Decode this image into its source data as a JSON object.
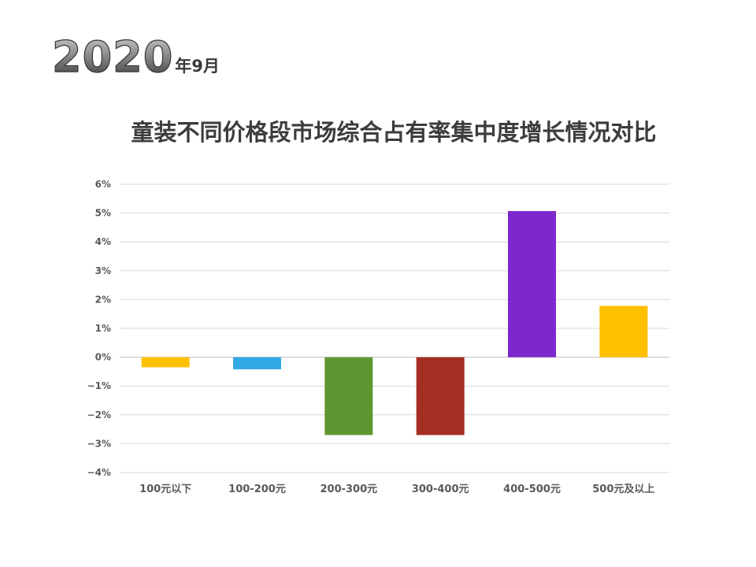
{
  "header": {
    "year": "2020",
    "month": "年9月"
  },
  "chart_data": {
    "type": "bar",
    "title": "童装不同价格段市场综合占有率集中度增长情况对比",
    "xlabel": "",
    "ylabel": "",
    "categories": [
      "100元以下",
      "100-200元",
      "200-300元",
      "300-400元",
      "400-500元",
      "500元及以上"
    ],
    "values": [
      -0.35,
      -0.42,
      -2.7,
      -2.7,
      5.07,
      1.78
    ],
    "value_unit": "%",
    "ylim": [
      -4,
      6
    ],
    "yticks": [
      6,
      5,
      4,
      3,
      2,
      1,
      0,
      -1,
      -2,
      -3,
      -4
    ],
    "ytick_labels": [
      "6%",
      "5%",
      "4%",
      "3%",
      "2%",
      "1%",
      "0%",
      "−1%",
      "−2%",
      "−3%",
      "−4%"
    ],
    "bar_colors": [
      "#FFC000",
      "#33A9E6",
      "#5E9732",
      "#A52E24",
      "#7E27CD",
      "#FFC000"
    ],
    "grid": true,
    "legend": "none"
  }
}
